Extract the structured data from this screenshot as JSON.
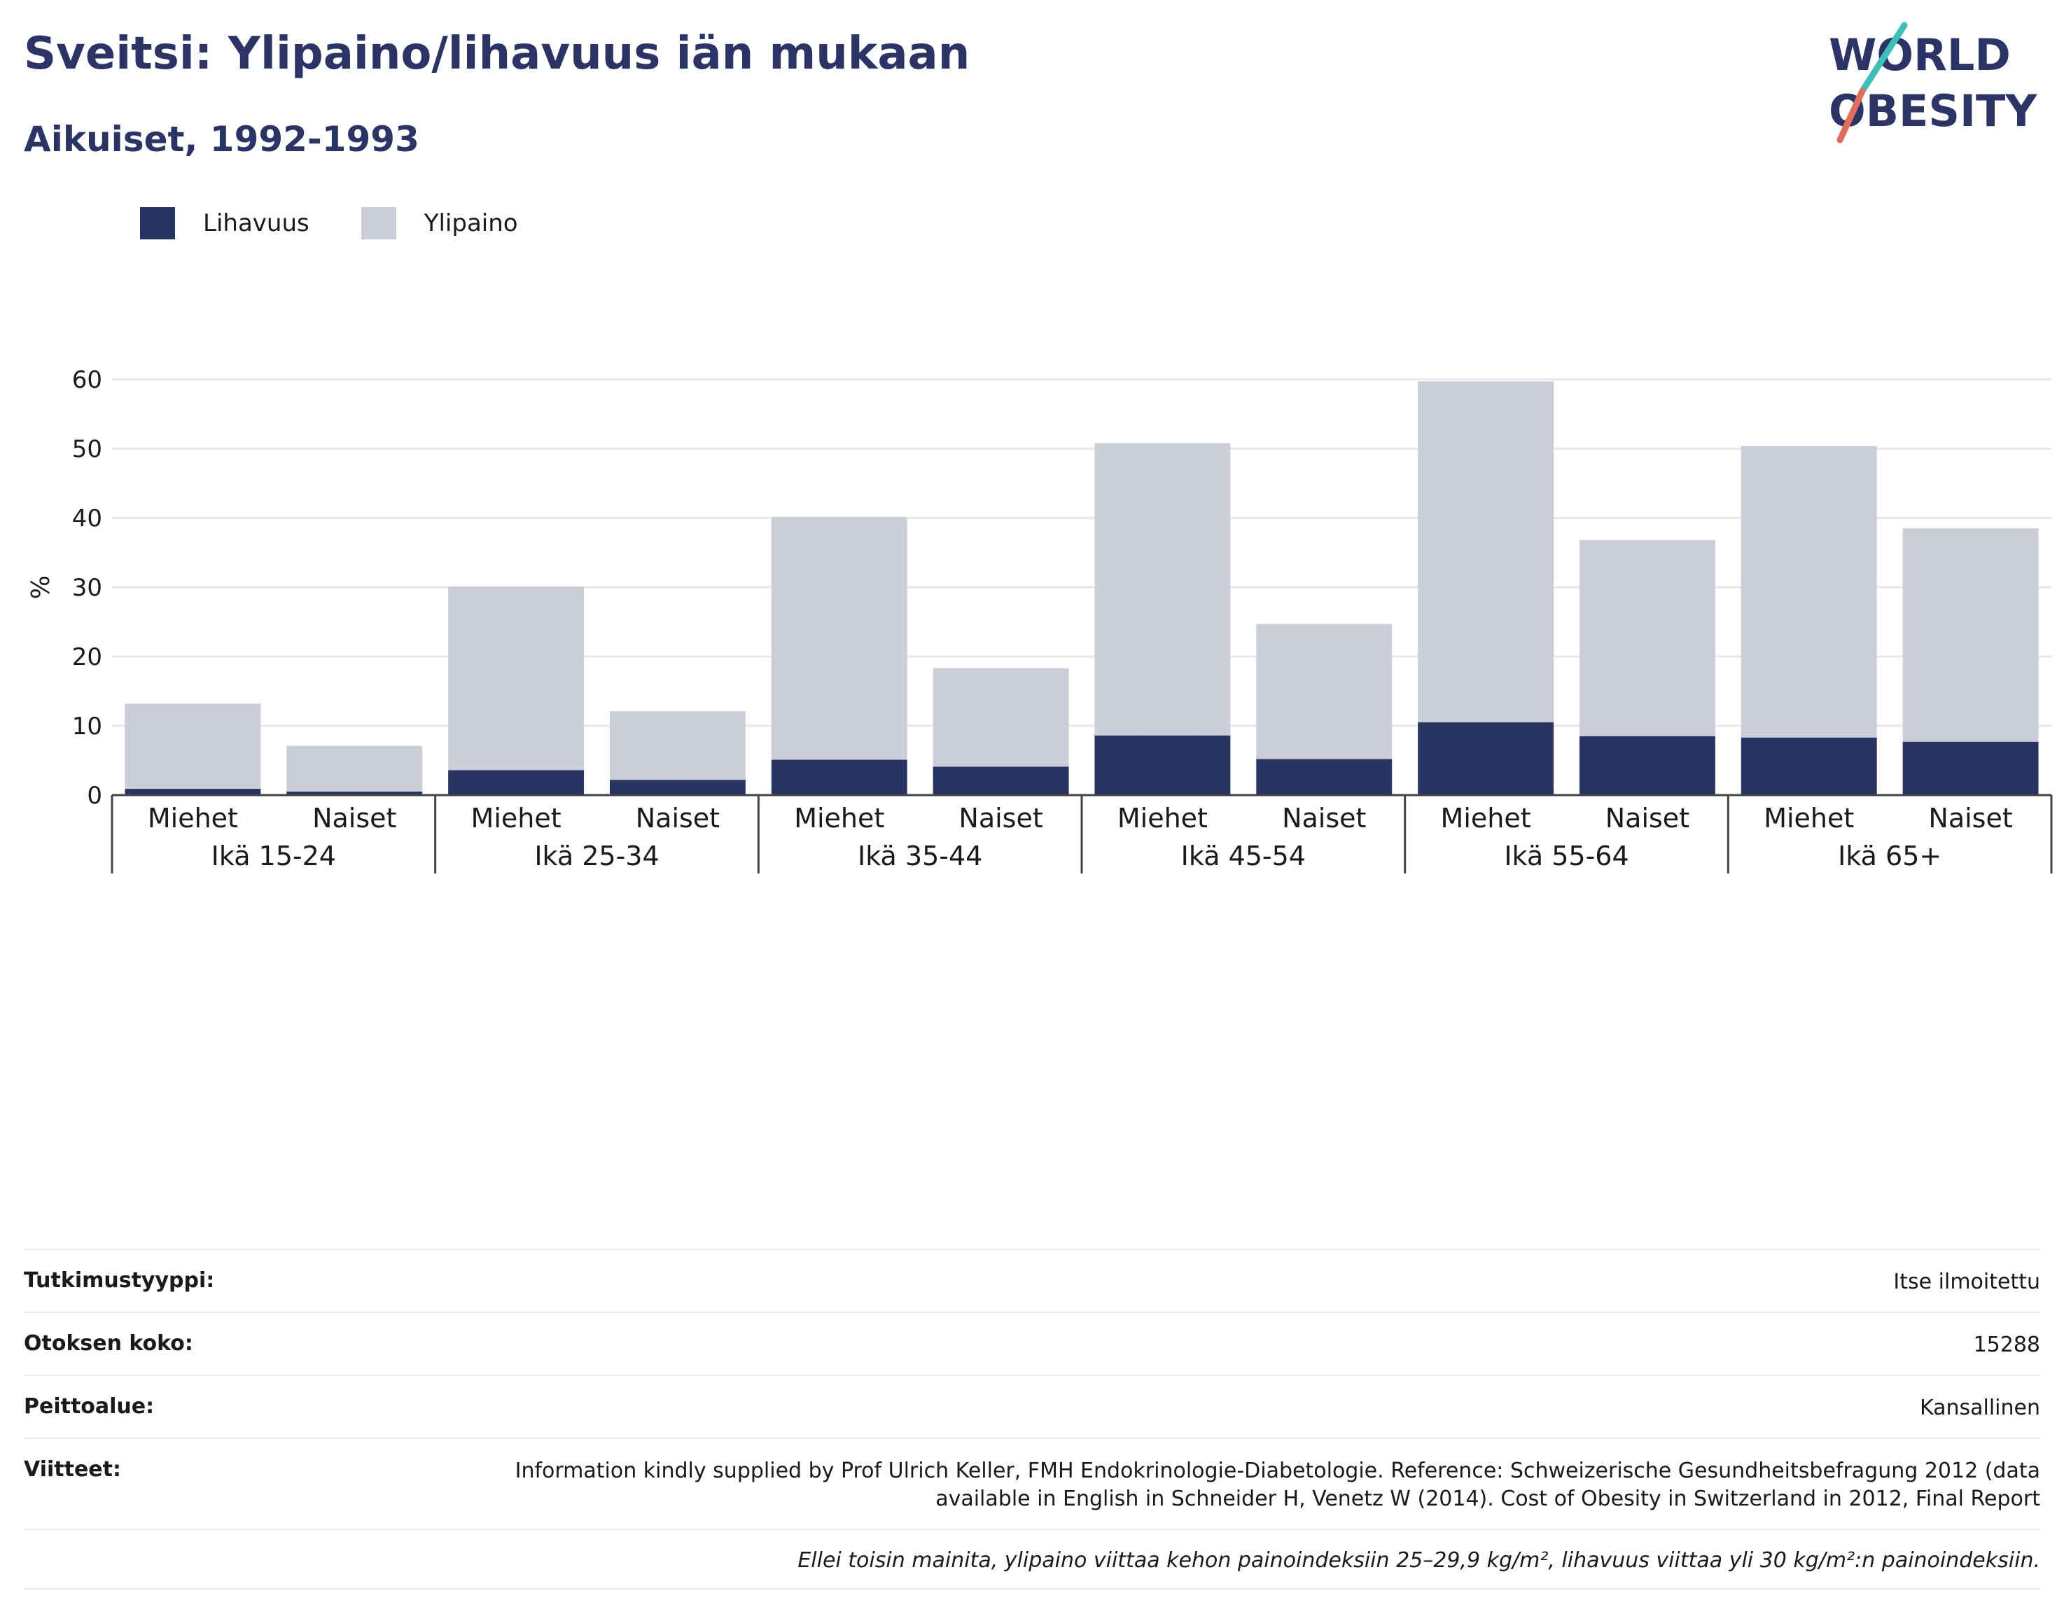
{
  "header": {
    "title": "Sveitsi: Ylipaino/lihavuus iän mukaan",
    "subtitle": "Aikuiset, 1992-1993"
  },
  "logo": {
    "line1": "WORLD",
    "line2": "OBESITY"
  },
  "colors": {
    "obesity": "#283562",
    "overweight": "#cbcdd9",
    "grid": "#e6e8ee",
    "text": "#1a1a1a",
    "brand": "#2a3466"
  },
  "legend": [
    {
      "label": "Lihavuus",
      "color": "#283562"
    },
    {
      "label": "Ylipaino",
      "color": "#cbcdd9"
    }
  ],
  "chart_data": {
    "type": "bar",
    "stacked": true,
    "ylabel": "%",
    "ylim": [
      0,
      60
    ],
    "yticks": [
      0,
      10,
      20,
      30,
      40,
      50,
      60
    ],
    "grid": true,
    "legend_position": "top-left",
    "groups": [
      "Ikä 15-24",
      "Ikä 25-34",
      "Ikä 35-44",
      "Ikä 45-54",
      "Ikä 55-64",
      "Ikä 65+"
    ],
    "subcategories": [
      "Miehet",
      "Naiset"
    ],
    "series": [
      {
        "name": "Lihavuus",
        "values": [
          0.9,
          0.5,
          3.6,
          2.2,
          5.1,
          4.1,
          8.6,
          5.2,
          10.5,
          8.5,
          8.3,
          7.7
        ]
      },
      {
        "name": "Ylipaino",
        "values": [
          12.3,
          6.6,
          26.5,
          9.9,
          35.0,
          14.2,
          42.2,
          19.5,
          49.2,
          28.3,
          42.1,
          30.8
        ]
      }
    ]
  },
  "info": {
    "rows": [
      {
        "label": "Tutkimustyyppi:",
        "value": "Itse ilmoitettu"
      },
      {
        "label": "Otoksen koko:",
        "value": "15288"
      },
      {
        "label": "Peittoalue:",
        "value": "Kansallinen"
      },
      {
        "label": "Viitteet:",
        "value": "Information kindly supplied by Prof Ulrich Keller, FMH Endokrinologie-Diabetologie. Reference: Schweizerische Gesundheitsbefragung 2012 (data available in English in Schneider H, Venetz W (2014). Cost of Obesity in Switzerland in 2012, Final Report"
      }
    ],
    "note": "Ellei toisin mainita, ylipaino viittaa kehon painoindeksiin 25–29,9 kg/m², lihavuus viittaa yli 30 kg/m²:n painoindeksiin."
  }
}
